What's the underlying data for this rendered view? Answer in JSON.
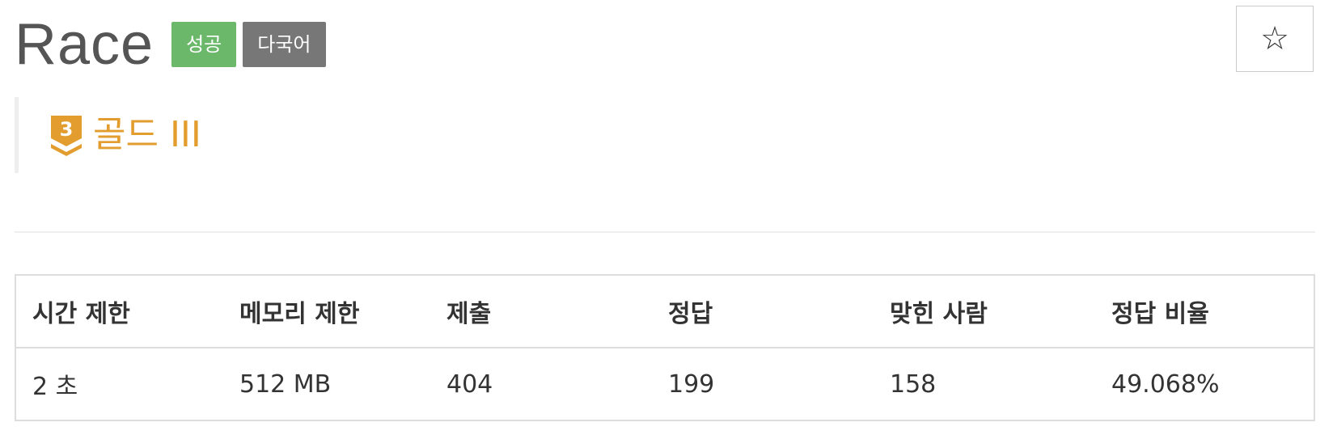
{
  "problem": {
    "title": "Race",
    "badges": {
      "success": {
        "label": "성공",
        "color": "#6bb86b"
      },
      "multilang": {
        "label": "다국어",
        "color": "#777777"
      }
    },
    "star_icon": "☆"
  },
  "tier": {
    "number": "3",
    "label": "골드 III",
    "color": "#e39d2f",
    "icon": "gold-tier-icon"
  },
  "stats": {
    "headers": [
      "시간 제한",
      "메모리 제한",
      "제출",
      "정답",
      "맞힌 사람",
      "정답 비율"
    ],
    "values": [
      "2 초",
      "512 MB",
      "404",
      "199",
      "158",
      "49.068%"
    ]
  }
}
